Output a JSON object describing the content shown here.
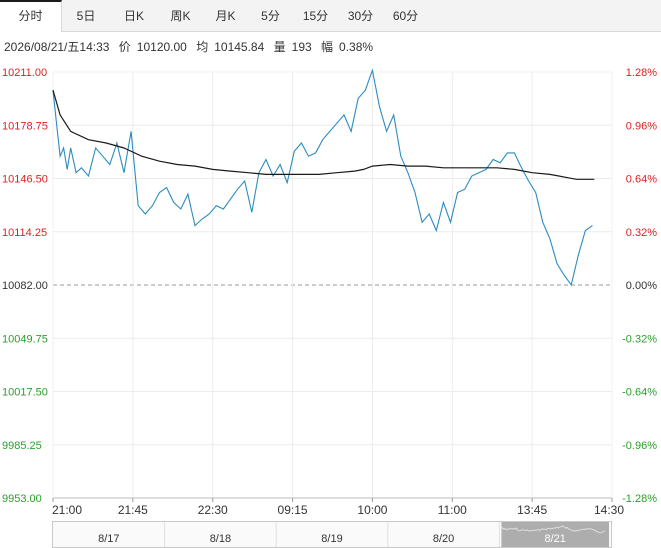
{
  "tabs": [
    {
      "label": "分时",
      "active": true
    },
    {
      "label": "5日",
      "active": false
    },
    {
      "label": "日K",
      "active": false
    },
    {
      "label": "周K",
      "active": false
    },
    {
      "label": "月K",
      "active": false
    },
    {
      "label": "5分",
      "active": false
    },
    {
      "label": "15分",
      "active": false
    },
    {
      "label": "30分",
      "active": false
    },
    {
      "label": "60分",
      "active": false
    }
  ],
  "info": {
    "datetime": "2026/08/21/五14:33",
    "price_label": "价",
    "price": "10120.00",
    "avg_label": "均",
    "avg": "10145.84",
    "volume_label": "量",
    "volume": "193",
    "change_label": "幅",
    "change": "0.38%"
  },
  "colors": {
    "price_line": "#2b8cbf",
    "avg_line": "#1a1a1a",
    "up": "#e02020",
    "down": "#2aa02a",
    "baseline": "#999999"
  },
  "chart_data": {
    "type": "line",
    "title": "",
    "prev_close": 10082.0,
    "ylim": [
      9953.0,
      10211.0
    ],
    "y_ticks": [
      "10211.00",
      "10178.75",
      "10146.50",
      "10114.25",
      "10082.00",
      "10049.75",
      "10017.50",
      "9985.25",
      "9953.00"
    ],
    "pct_ticks": [
      "1.28%",
      "0.96%",
      "0.64%",
      "0.32%",
      "0.00%",
      "-0.32%",
      "-0.64%",
      "-0.96%",
      "-1.28%"
    ],
    "x_ticks": [
      "21:00",
      "21:45",
      "22:30",
      "09:15",
      "10:00",
      "11:00",
      "13:45",
      "14:30"
    ],
    "x_tick_index": [
      0,
      45,
      90,
      135,
      180,
      225,
      270,
      315
    ],
    "x_count": 316,
    "grid": true,
    "series": [
      {
        "key": "price",
        "x": [
          0,
          2,
          4,
          6,
          8,
          10,
          13,
          16,
          20,
          24,
          28,
          32,
          36,
          40,
          44,
          48,
          52,
          56,
          60,
          64,
          68,
          72,
          76,
          80,
          84,
          88,
          92,
          96,
          100,
          104,
          108,
          112,
          116,
          120,
          124,
          128,
          132,
          136,
          140,
          144,
          148,
          152,
          156,
          160,
          164,
          168,
          172,
          176,
          180,
          184,
          188,
          192,
          196,
          200,
          204,
          208,
          212,
          216,
          220,
          224,
          228,
          232,
          236,
          240,
          244,
          248,
          252,
          256,
          260,
          264,
          268,
          272,
          276,
          280,
          284,
          288,
          292,
          296,
          300,
          304
        ],
        "values": [
          10200,
          10180,
          10160,
          10165,
          10152,
          10165,
          10150,
          10153,
          10148,
          10165,
          10160,
          10155,
          10168,
          10150,
          10175,
          10130,
          10125,
          10130,
          10138,
          10141,
          10132,
          10128,
          10137,
          10118,
          10122,
          10125,
          10130,
          10128,
          10134,
          10140,
          10145,
          10126,
          10150,
          10158,
          10148,
          10155,
          10144,
          10163,
          10168,
          10160,
          10162,
          10170,
          10175,
          10180,
          10185,
          10175,
          10195,
          10200,
          10212,
          10190,
          10175,
          10185,
          10160,
          10150,
          10138,
          10120,
          10125,
          10115,
          10132,
          10120,
          10138,
          10140,
          10148,
          10150,
          10152,
          10158,
          10156,
          10162,
          10162,
          10153,
          10145,
          10138,
          10120,
          10110,
          10095,
          10088,
          10082,
          10100,
          10115,
          10118
        ]
      },
      {
        "key": "avg",
        "x": [
          0,
          4,
          10,
          20,
          30,
          40,
          50,
          60,
          70,
          80,
          90,
          100,
          110,
          120,
          130,
          140,
          150,
          160,
          170,
          175,
          180,
          190,
          200,
          210,
          220,
          230,
          240,
          250,
          260,
          270,
          280,
          285,
          290,
          295,
          300,
          305
        ],
        "values": [
          10200,
          10185,
          10175,
          10170,
          10168,
          10165,
          10160,
          10157,
          10155,
          10154,
          10152,
          10151,
          10150,
          10149,
          10149,
          10149,
          10149,
          10150,
          10151,
          10152,
          10154,
          10155,
          10154,
          10154,
          10153,
          10153,
          10153,
          10153,
          10152,
          10150,
          10149,
          10148,
          10147,
          10146,
          10146,
          10146
        ]
      }
    ]
  },
  "navigator": {
    "dates": [
      "8/17",
      "8/18",
      "8/19",
      "8/20",
      "8/21"
    ]
  }
}
